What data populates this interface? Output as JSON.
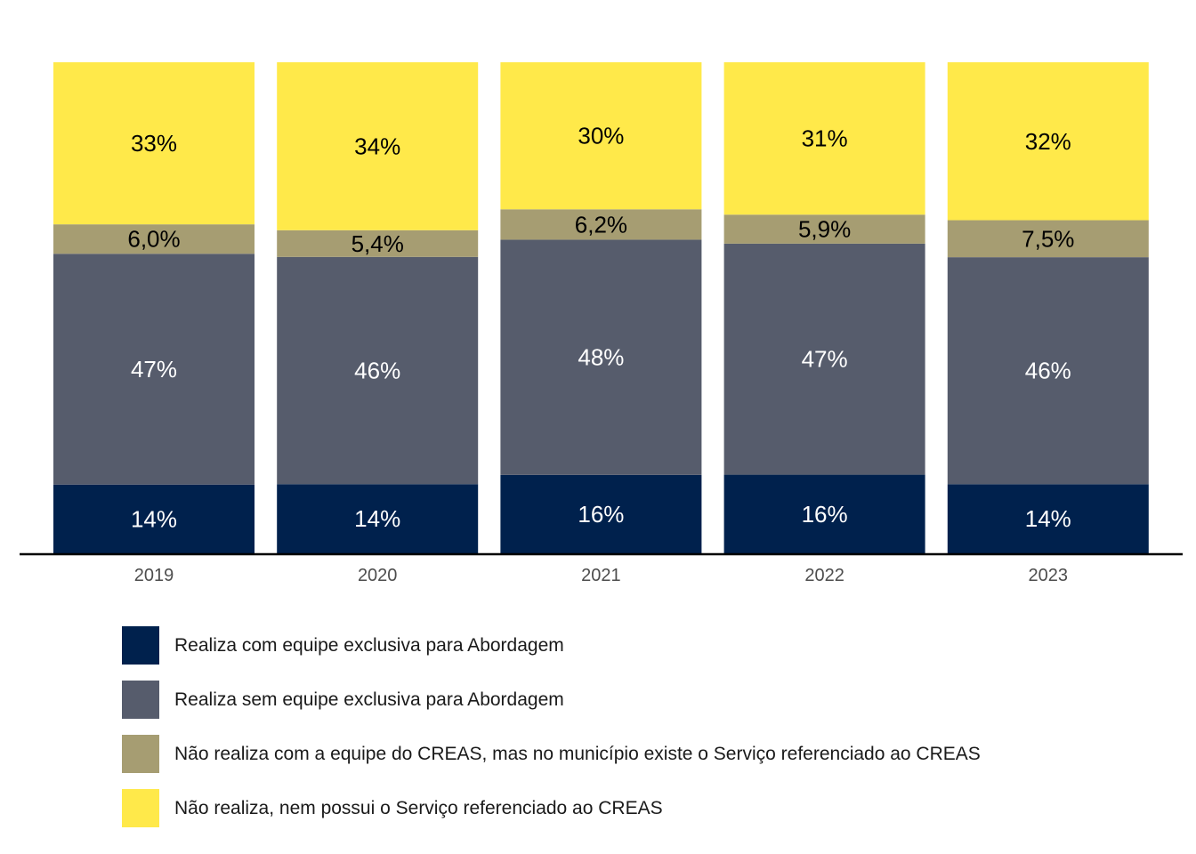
{
  "chart_data": {
    "type": "bar",
    "stacked": true,
    "title": "",
    "xlabel": "",
    "ylabel": "",
    "ylim": [
      0,
      100
    ],
    "grid": false,
    "legend_position": "bottom",
    "categories": [
      "2019",
      "2020",
      "2021",
      "2022",
      "2023"
    ],
    "series": [
      {
        "name": "Realiza com equipe exclusiva para Abordagem",
        "color": "#00214d",
        "label_color": "#ffffff",
        "values": [
          14,
          14,
          16,
          16,
          14
        ],
        "labels": [
          "14%",
          "14%",
          "16%",
          "16%",
          "14%"
        ]
      },
      {
        "name": "Realiza sem equipe exclusiva para Abordagem",
        "color": "#565c6c",
        "label_color": "#ffffff",
        "values": [
          47,
          46,
          48,
          47,
          46
        ],
        "labels": [
          "47%",
          "46%",
          "48%",
          "47%",
          "46%"
        ]
      },
      {
        "name": "Não realiza com a equipe do CREAS, mas no município existe o Serviço referenciado ao CREAS",
        "color": "#a69d72",
        "label_color": "#000000",
        "values": [
          6.0,
          5.4,
          6.2,
          5.9,
          7.5
        ],
        "labels": [
          "6,0%",
          "5,4%",
          "6,2%",
          "5,9%",
          "7,5%"
        ]
      },
      {
        "name": "Não realiza, nem possui o Serviço referenciado ao CREAS",
        "color": "#ffe94a",
        "label_color": "#000000",
        "values": [
          33,
          34,
          30,
          31,
          32
        ],
        "labels": [
          "33%",
          "34%",
          "30%",
          "31%",
          "32%"
        ]
      }
    ]
  }
}
